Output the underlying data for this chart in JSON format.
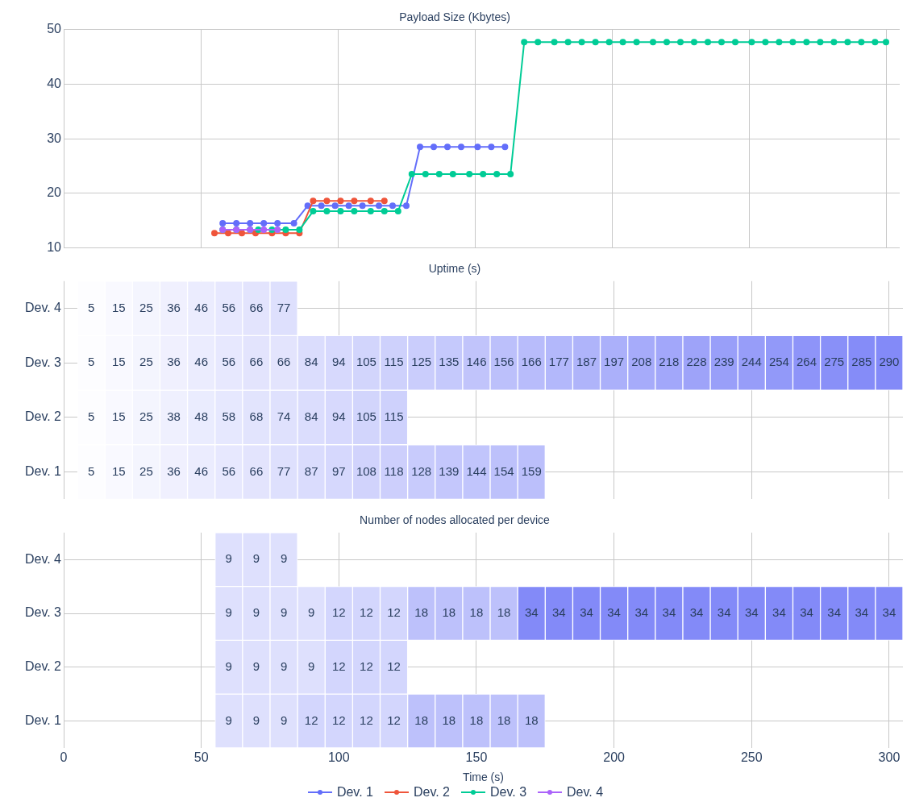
{
  "chart_data": [
    {
      "type": "line",
      "title": "Payload Size (Kbytes)",
      "xlim": [
        0,
        305
      ],
      "xticks": [
        0,
        50,
        100,
        150,
        200,
        250,
        300
      ],
      "ylim": [
        10,
        50
      ],
      "yticks": [
        10,
        20,
        30,
        40,
        50
      ],
      "grid": true,
      "tick_labels": "y",
      "legend": "bottom",
      "marker": "circle",
      "series": [
        {
          "name": "Dev. 1",
          "color": "#636efa",
          "x": [
            58,
            63,
            68,
            73,
            78,
            84,
            89,
            94,
            99,
            104,
            109,
            115,
            120,
            125,
            130,
            135,
            140,
            145,
            151,
            156,
            161
          ],
          "values": [
            14.5,
            14.5,
            14.5,
            14.5,
            14.5,
            14.5,
            17.7,
            17.7,
            17.7,
            17.7,
            17.7,
            17.7,
            17.7,
            17.7,
            28.5,
            28.5,
            28.5,
            28.5,
            28.5,
            28.5,
            28.5
          ]
        },
        {
          "name": "Dev. 2",
          "color": "#ef553b",
          "x": [
            55,
            60,
            65,
            70,
            76,
            81,
            86,
            91,
            96,
            101,
            106,
            112,
            117
          ],
          "values": [
            12.7,
            12.7,
            12.7,
            12.7,
            12.7,
            12.7,
            12.7,
            18.6,
            18.6,
            18.6,
            18.6,
            18.6,
            18.6
          ]
        },
        {
          "name": "Dev. 3",
          "color": "#00cc96",
          "x": [
            58,
            63,
            68,
            71,
            76,
            81,
            86,
            91,
            96,
            101,
            106,
            112,
            117,
            122,
            127,
            132,
            137,
            142,
            148,
            153,
            158,
            163,
            168,
            173,
            179,
            184,
            189,
            194,
            199,
            204,
            209,
            215,
            220,
            225,
            230,
            235,
            240,
            245,
            251,
            256,
            261,
            266,
            271,
            276,
            281,
            286,
            291,
            296,
            300
          ],
          "values": [
            13.3,
            13.3,
            13.3,
            13.3,
            13.3,
            13.3,
            13.3,
            16.7,
            16.7,
            16.7,
            16.7,
            16.7,
            16.7,
            16.7,
            23.5,
            23.5,
            23.5,
            23.5,
            23.5,
            23.5,
            23.5,
            23.5,
            47.7,
            47.7,
            47.7,
            47.7,
            47.7,
            47.7,
            47.7,
            47.7,
            47.7,
            47.7,
            47.7,
            47.7,
            47.7,
            47.7,
            47.7,
            47.7,
            47.7,
            47.7,
            47.7,
            47.7,
            47.7,
            47.7,
            47.7,
            47.7,
            47.7,
            47.7,
            47.7
          ]
        },
        {
          "name": "Dev. 4",
          "color": "#ab63fa",
          "x": [
            58,
            63,
            68,
            73,
            78
          ],
          "values": [
            13.3,
            13.3,
            13.3,
            13.3,
            13.3
          ]
        }
      ]
    },
    {
      "type": "heatmap",
      "title": "Uptime (s)",
      "xlim": [
        0,
        305
      ],
      "xticks": [
        0,
        50,
        100,
        150,
        200,
        250,
        300
      ],
      "grid": true,
      "tick_labels": "y",
      "data_labels": true,
      "color": "#838af8",
      "x": [
        10,
        20,
        30,
        40,
        50,
        60,
        70,
        80,
        90,
        100,
        110,
        120,
        130,
        140,
        150,
        160,
        170,
        180,
        190,
        200,
        210,
        220,
        230,
        240,
        250,
        260,
        270,
        280,
        290,
        300
      ],
      "y_categories": [
        "Dev. 4",
        "Dev. 3",
        "Dev. 2",
        "Dev. 1"
      ],
      "cells": [
        [
          5,
          15,
          25,
          36,
          46,
          56,
          66,
          77,
          null,
          null,
          null,
          null,
          null,
          null,
          null,
          null,
          null,
          null,
          null,
          null,
          null,
          null,
          null,
          null,
          null,
          null,
          null,
          null,
          null,
          null
        ],
        [
          5,
          15,
          25,
          36,
          46,
          56,
          66,
          66,
          84,
          94,
          105,
          115,
          125,
          135,
          146,
          156,
          166,
          177,
          187,
          197,
          208,
          218,
          228,
          239,
          244,
          254,
          264,
          275,
          285,
          290
        ],
        [
          5,
          15,
          25,
          38,
          48,
          58,
          68,
          74,
          84,
          94,
          105,
          115,
          null,
          null,
          null,
          null,
          null,
          null,
          null,
          null,
          null,
          null,
          null,
          null,
          null,
          null,
          null,
          null,
          null,
          null
        ],
        [
          5,
          15,
          25,
          36,
          46,
          56,
          66,
          77,
          87,
          97,
          108,
          118,
          128,
          139,
          144,
          154,
          159,
          null,
          null,
          null,
          null,
          null,
          null,
          null,
          null,
          null,
          null,
          null,
          null,
          null
        ]
      ]
    },
    {
      "type": "heatmap",
      "title": "Number of nodes allocated per device",
      "xlabel": "Time (s)",
      "xlim": [
        0,
        305
      ],
      "xticks": [
        0,
        50,
        100,
        150,
        200,
        250,
        300
      ],
      "grid": true,
      "data_labels": true,
      "color": "#838af8",
      "x": [
        60,
        70,
        80,
        90,
        100,
        110,
        120,
        130,
        140,
        150,
        160,
        170,
        180,
        190,
        200,
        210,
        220,
        230,
        240,
        250,
        260,
        270,
        280,
        290,
        300
      ],
      "y_categories": [
        "Dev. 4",
        "Dev. 3",
        "Dev. 2",
        "Dev. 1"
      ],
      "cells": [
        [
          9,
          9,
          9,
          null,
          null,
          null,
          null,
          null,
          null,
          null,
          null,
          null,
          null,
          null,
          null,
          null,
          null,
          null,
          null,
          null,
          null,
          null,
          null,
          null,
          null
        ],
        [
          9,
          9,
          9,
          9,
          12,
          12,
          12,
          18,
          18,
          18,
          18,
          34,
          34,
          34,
          34,
          34,
          34,
          34,
          34,
          34,
          34,
          34,
          34,
          34,
          34
        ],
        [
          9,
          9,
          9,
          9,
          12,
          12,
          12,
          null,
          null,
          null,
          null,
          null,
          null,
          null,
          null,
          null,
          null,
          null,
          null,
          null,
          null,
          null,
          null,
          null,
          null
        ],
        [
          9,
          9,
          9,
          12,
          12,
          12,
          12,
          18,
          18,
          18,
          18,
          18,
          null,
          null,
          null,
          null,
          null,
          null,
          null,
          null,
          null,
          null,
          null,
          null,
          null
        ]
      ]
    }
  ]
}
